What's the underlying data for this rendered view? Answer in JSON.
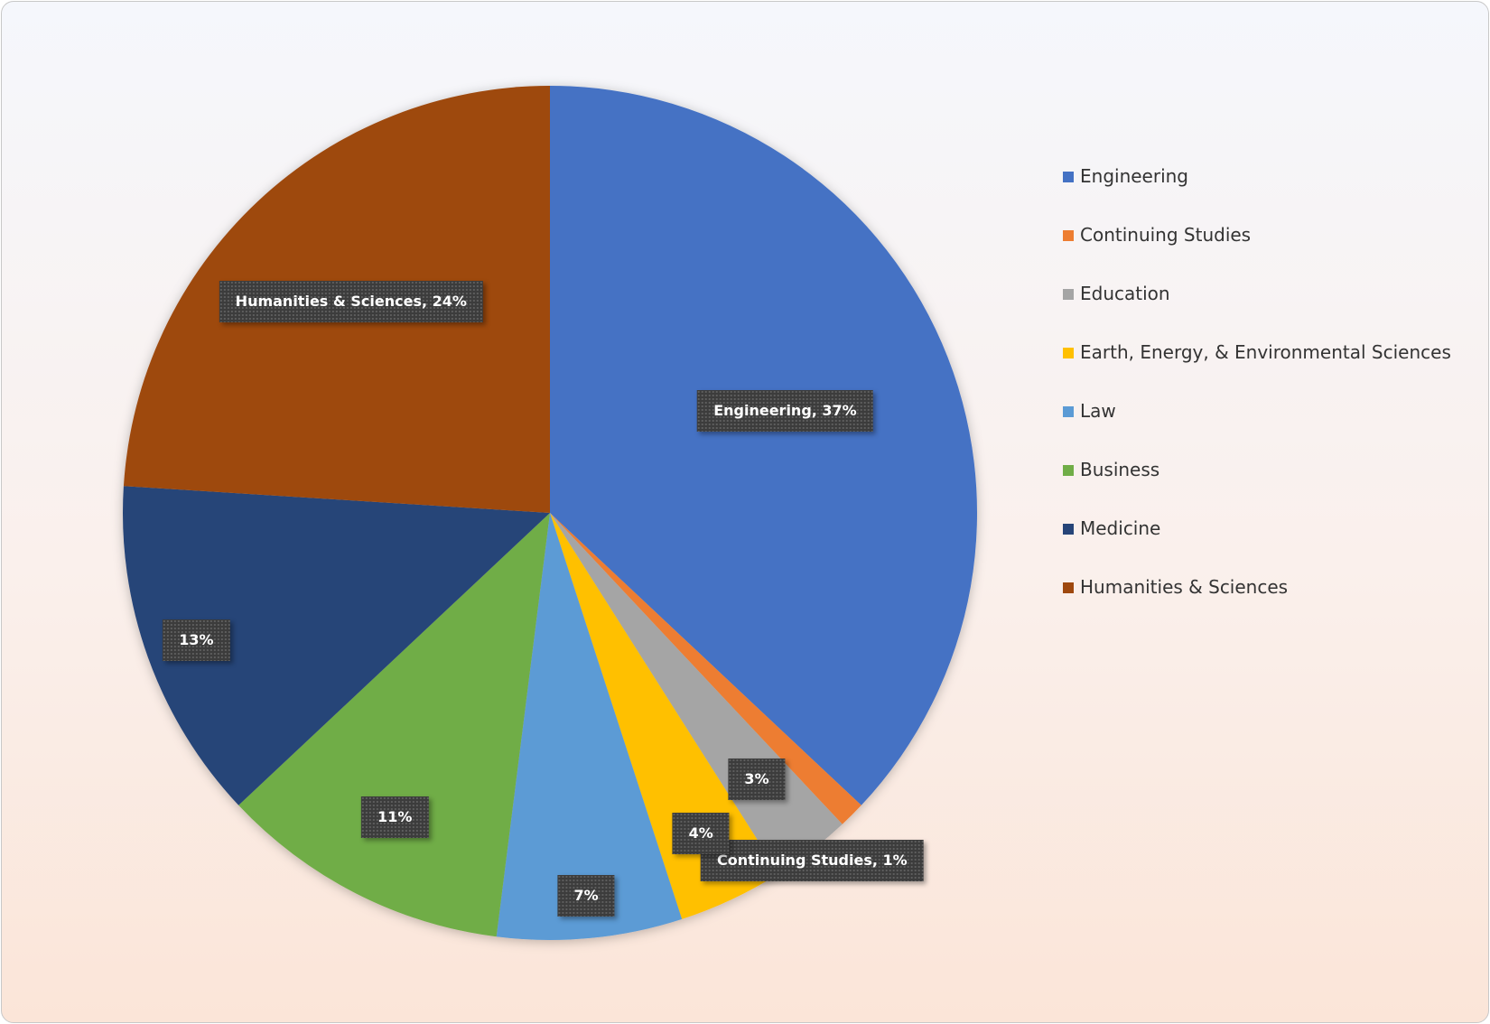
{
  "chart_data": {
    "type": "pie",
    "categories": [
      "Engineering",
      "Continuing Studies",
      "Education",
      "Earth, Energy, & Environmental Sciences",
      "Law",
      "Business",
      "Medicine",
      "Humanities & Sciences"
    ],
    "values": [
      37,
      1,
      3,
      4,
      7,
      11,
      13,
      24
    ],
    "data_labels": [
      "Engineering, 37%",
      "Continuing Studies, 1%",
      "3%",
      "4%",
      "7%",
      "11%",
      "13%",
      "Humanities & Sciences, 24%"
    ],
    "colors": [
      "#4472C4",
      "#ED7D31",
      "#A5A5A5",
      "#FFC000",
      "#5B9BD5",
      "#70AD47",
      "#264478",
      "#9E480E"
    ],
    "start_angle": "12 o'clock",
    "direction": "clockwise",
    "legend_position": "right",
    "title": ""
  }
}
